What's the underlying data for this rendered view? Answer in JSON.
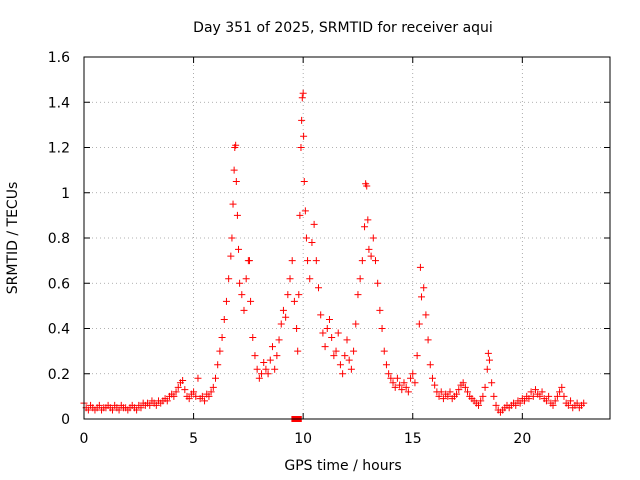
{
  "chart_data": {
    "type": "scatter",
    "title": "Day 351 of 2025, SRMTID for receiver aqui",
    "xlabel": "GPS time / hours",
    "ylabel": "SRMTID / TECUs",
    "xlim": [
      0,
      24
    ],
    "ylim": [
      0,
      1.6
    ],
    "xticks": [
      0,
      5,
      10,
      15,
      20
    ],
    "xtick_labels": [
      "0",
      "5",
      "10",
      "15",
      "20"
    ],
    "yticks": [
      0,
      0.2,
      0.4,
      0.6,
      0.8,
      1.0,
      1.2,
      1.4,
      1.6
    ],
    "ytick_labels": [
      "0",
      "0.2",
      "0.4",
      "0.6",
      "0.8",
      "1",
      "1.2",
      "1.4",
      "1.6"
    ],
    "grid": true,
    "marker": "plus",
    "marker_color": "#ff0000",
    "series": [
      {
        "name": "SRMTID",
        "points": [
          [
            0.0,
            0.07
          ],
          [
            0.1,
            0.05
          ],
          [
            0.2,
            0.04
          ],
          [
            0.3,
            0.06
          ],
          [
            0.4,
            0.05
          ],
          [
            0.5,
            0.04
          ],
          [
            0.6,
            0.05
          ],
          [
            0.7,
            0.06
          ],
          [
            0.8,
            0.04
          ],
          [
            0.9,
            0.05
          ],
          [
            1.0,
            0.05
          ],
          [
            1.1,
            0.06
          ],
          [
            1.2,
            0.05
          ],
          [
            1.3,
            0.04
          ],
          [
            1.4,
            0.06
          ],
          [
            1.5,
            0.05
          ],
          [
            1.6,
            0.04
          ],
          [
            1.7,
            0.06
          ],
          [
            1.8,
            0.05
          ],
          [
            1.9,
            0.05
          ],
          [
            2.0,
            0.04
          ],
          [
            2.1,
            0.05
          ],
          [
            2.2,
            0.06
          ],
          [
            2.3,
            0.05
          ],
          [
            2.4,
            0.04
          ],
          [
            2.5,
            0.06
          ],
          [
            2.6,
            0.05
          ],
          [
            2.7,
            0.07
          ],
          [
            2.8,
            0.06
          ],
          [
            2.9,
            0.07
          ],
          [
            3.0,
            0.06
          ],
          [
            3.1,
            0.08
          ],
          [
            3.2,
            0.07
          ],
          [
            3.3,
            0.06
          ],
          [
            3.4,
            0.08
          ],
          [
            3.5,
            0.07
          ],
          [
            3.6,
            0.08
          ],
          [
            3.7,
            0.09
          ],
          [
            3.8,
            0.08
          ],
          [
            3.9,
            0.1
          ],
          [
            4.0,
            0.11
          ],
          [
            4.1,
            0.1
          ],
          [
            4.2,
            0.12
          ],
          [
            4.3,
            0.14
          ],
          [
            4.4,
            0.16
          ],
          [
            4.5,
            0.17
          ],
          [
            4.6,
            0.13
          ],
          [
            4.7,
            0.1
          ],
          [
            4.8,
            0.09
          ],
          [
            4.9,
            0.11
          ],
          [
            5.0,
            0.12
          ],
          [
            5.1,
            0.1
          ],
          [
            5.2,
            0.18
          ],
          [
            5.3,
            0.09
          ],
          [
            5.4,
            0.1
          ],
          [
            5.5,
            0.08
          ],
          [
            5.6,
            0.11
          ],
          [
            5.7,
            0.1
          ],
          [
            5.8,
            0.12
          ],
          [
            5.9,
            0.14
          ],
          [
            6.0,
            0.18
          ],
          [
            6.1,
            0.24
          ],
          [
            6.2,
            0.3
          ],
          [
            6.3,
            0.36
          ],
          [
            6.4,
            0.44
          ],
          [
            6.5,
            0.52
          ],
          [
            6.6,
            0.62
          ],
          [
            6.7,
            0.72
          ],
          [
            6.75,
            0.8
          ],
          [
            6.8,
            0.95
          ],
          [
            6.85,
            1.1
          ],
          [
            6.88,
            1.2
          ],
          [
            6.92,
            1.21
          ],
          [
            6.95,
            1.05
          ],
          [
            7.0,
            0.9
          ],
          [
            7.05,
            0.75
          ],
          [
            7.1,
            0.6
          ],
          [
            7.2,
            0.55
          ],
          [
            7.3,
            0.48
          ],
          [
            7.4,
            0.62
          ],
          [
            7.5,
            0.7
          ],
          [
            7.55,
            0.7
          ],
          [
            7.6,
            0.52
          ],
          [
            7.7,
            0.36
          ],
          [
            7.8,
            0.28
          ],
          [
            7.9,
            0.22
          ],
          [
            8.0,
            0.18
          ],
          [
            8.1,
            0.2
          ],
          [
            8.2,
            0.25
          ],
          [
            8.3,
            0.22
          ],
          [
            8.4,
            0.2
          ],
          [
            8.5,
            0.26
          ],
          [
            8.6,
            0.32
          ],
          [
            8.7,
            0.22
          ],
          [
            8.8,
            0.28
          ],
          [
            8.9,
            0.35
          ],
          [
            9.0,
            0.42
          ],
          [
            9.1,
            0.48
          ],
          [
            9.2,
            0.45
          ],
          [
            9.3,
            0.55
          ],
          [
            9.4,
            0.62
          ],
          [
            9.5,
            0.7
          ],
          [
            9.6,
            0.52
          ],
          [
            9.7,
            0.4
          ],
          [
            9.75,
            0.3
          ],
          [
            9.8,
            0.55
          ],
          [
            9.85,
            0.9
          ],
          [
            9.9,
            1.2
          ],
          [
            9.93,
            1.32
          ],
          [
            9.96,
            1.42
          ],
          [
            10.0,
            1.44
          ],
          [
            10.02,
            1.25
          ],
          [
            10.05,
            1.05
          ],
          [
            10.1,
            0.92
          ],
          [
            10.15,
            0.8
          ],
          [
            10.2,
            0.7
          ],
          [
            10.3,
            0.62
          ],
          [
            10.4,
            0.78
          ],
          [
            10.5,
            0.86
          ],
          [
            10.6,
            0.7
          ],
          [
            10.7,
            0.58
          ],
          [
            10.8,
            0.46
          ],
          [
            10.9,
            0.38
          ],
          [
            11.0,
            0.32
          ],
          [
            11.1,
            0.4
          ],
          [
            11.2,
            0.44
          ],
          [
            11.3,
            0.36
          ],
          [
            11.4,
            0.28
          ],
          [
            11.5,
            0.3
          ],
          [
            11.6,
            0.38
          ],
          [
            11.7,
            0.24
          ],
          [
            11.8,
            0.2
          ],
          [
            11.9,
            0.28
          ],
          [
            12.0,
            0.35
          ],
          [
            12.1,
            0.26
          ],
          [
            12.2,
            0.22
          ],
          [
            12.3,
            0.3
          ],
          [
            12.4,
            0.42
          ],
          [
            12.5,
            0.55
          ],
          [
            12.6,
            0.62
          ],
          [
            12.7,
            0.7
          ],
          [
            12.8,
            0.85
          ],
          [
            12.85,
            1.04
          ],
          [
            12.9,
            1.03
          ],
          [
            12.95,
            0.88
          ],
          [
            13.0,
            0.75
          ],
          [
            13.1,
            0.72
          ],
          [
            13.2,
            0.8
          ],
          [
            13.3,
            0.7
          ],
          [
            13.4,
            0.6
          ],
          [
            13.5,
            0.48
          ],
          [
            13.6,
            0.4
          ],
          [
            13.7,
            0.3
          ],
          [
            13.8,
            0.24
          ],
          [
            13.9,
            0.2
          ],
          [
            14.0,
            0.18
          ],
          [
            14.1,
            0.16
          ],
          [
            14.2,
            0.14
          ],
          [
            14.3,
            0.18
          ],
          [
            14.4,
            0.15
          ],
          [
            14.5,
            0.13
          ],
          [
            14.6,
            0.16
          ],
          [
            14.7,
            0.14
          ],
          [
            14.8,
            0.12
          ],
          [
            14.9,
            0.18
          ],
          [
            15.0,
            0.2
          ],
          [
            15.1,
            0.16
          ],
          [
            15.2,
            0.28
          ],
          [
            15.3,
            0.42
          ],
          [
            15.35,
            0.67
          ],
          [
            15.4,
            0.54
          ],
          [
            15.5,
            0.58
          ],
          [
            15.6,
            0.46
          ],
          [
            15.7,
            0.35
          ],
          [
            15.8,
            0.24
          ],
          [
            15.9,
            0.18
          ],
          [
            16.0,
            0.15
          ],
          [
            16.1,
            0.12
          ],
          [
            16.2,
            0.1
          ],
          [
            16.3,
            0.12
          ],
          [
            16.4,
            0.09
          ],
          [
            16.5,
            0.11
          ],
          [
            16.6,
            0.1
          ],
          [
            16.7,
            0.12
          ],
          [
            16.8,
            0.09
          ],
          [
            16.9,
            0.1
          ],
          [
            17.0,
            0.11
          ],
          [
            17.1,
            0.13
          ],
          [
            17.2,
            0.15
          ],
          [
            17.3,
            0.16
          ],
          [
            17.4,
            0.14
          ],
          [
            17.5,
            0.12
          ],
          [
            17.6,
            0.1
          ],
          [
            17.7,
            0.09
          ],
          [
            17.8,
            0.08
          ],
          [
            17.9,
            0.07
          ],
          [
            18.0,
            0.06
          ],
          [
            18.1,
            0.08
          ],
          [
            18.2,
            0.1
          ],
          [
            18.3,
            0.14
          ],
          [
            18.4,
            0.22
          ],
          [
            18.45,
            0.29
          ],
          [
            18.5,
            0.26
          ],
          [
            18.6,
            0.16
          ],
          [
            18.7,
            0.1
          ],
          [
            18.8,
            0.06
          ],
          [
            18.9,
            0.04
          ],
          [
            19.0,
            0.03
          ],
          [
            19.1,
            0.04
          ],
          [
            19.2,
            0.05
          ],
          [
            19.3,
            0.06
          ],
          [
            19.4,
            0.05
          ],
          [
            19.5,
            0.06
          ],
          [
            19.6,
            0.07
          ],
          [
            19.7,
            0.06
          ],
          [
            19.8,
            0.08
          ],
          [
            19.9,
            0.07
          ],
          [
            20.0,
            0.09
          ],
          [
            20.1,
            0.08
          ],
          [
            20.2,
            0.1
          ],
          [
            20.3,
            0.09
          ],
          [
            20.4,
            0.12
          ],
          [
            20.5,
            0.1
          ],
          [
            20.6,
            0.13
          ],
          [
            20.7,
            0.11
          ],
          [
            20.8,
            0.1
          ],
          [
            20.9,
            0.12
          ],
          [
            21.0,
            0.09
          ],
          [
            21.1,
            0.08
          ],
          [
            21.2,
            0.1
          ],
          [
            21.3,
            0.07
          ],
          [
            21.4,
            0.06
          ],
          [
            21.5,
            0.08
          ],
          [
            21.6,
            0.1
          ],
          [
            21.7,
            0.12
          ],
          [
            21.8,
            0.14
          ],
          [
            21.9,
            0.1
          ],
          [
            22.0,
            0.07
          ],
          [
            22.1,
            0.06
          ],
          [
            22.2,
            0.08
          ],
          [
            22.3,
            0.05
          ],
          [
            22.4,
            0.06
          ],
          [
            22.5,
            0.07
          ],
          [
            22.6,
            0.05
          ],
          [
            22.7,
            0.06
          ],
          [
            22.8,
            0.07
          ]
        ],
        "square_markers": [
          [
            9.6,
            0.0
          ],
          [
            9.8,
            0.0
          ]
        ]
      }
    ]
  }
}
